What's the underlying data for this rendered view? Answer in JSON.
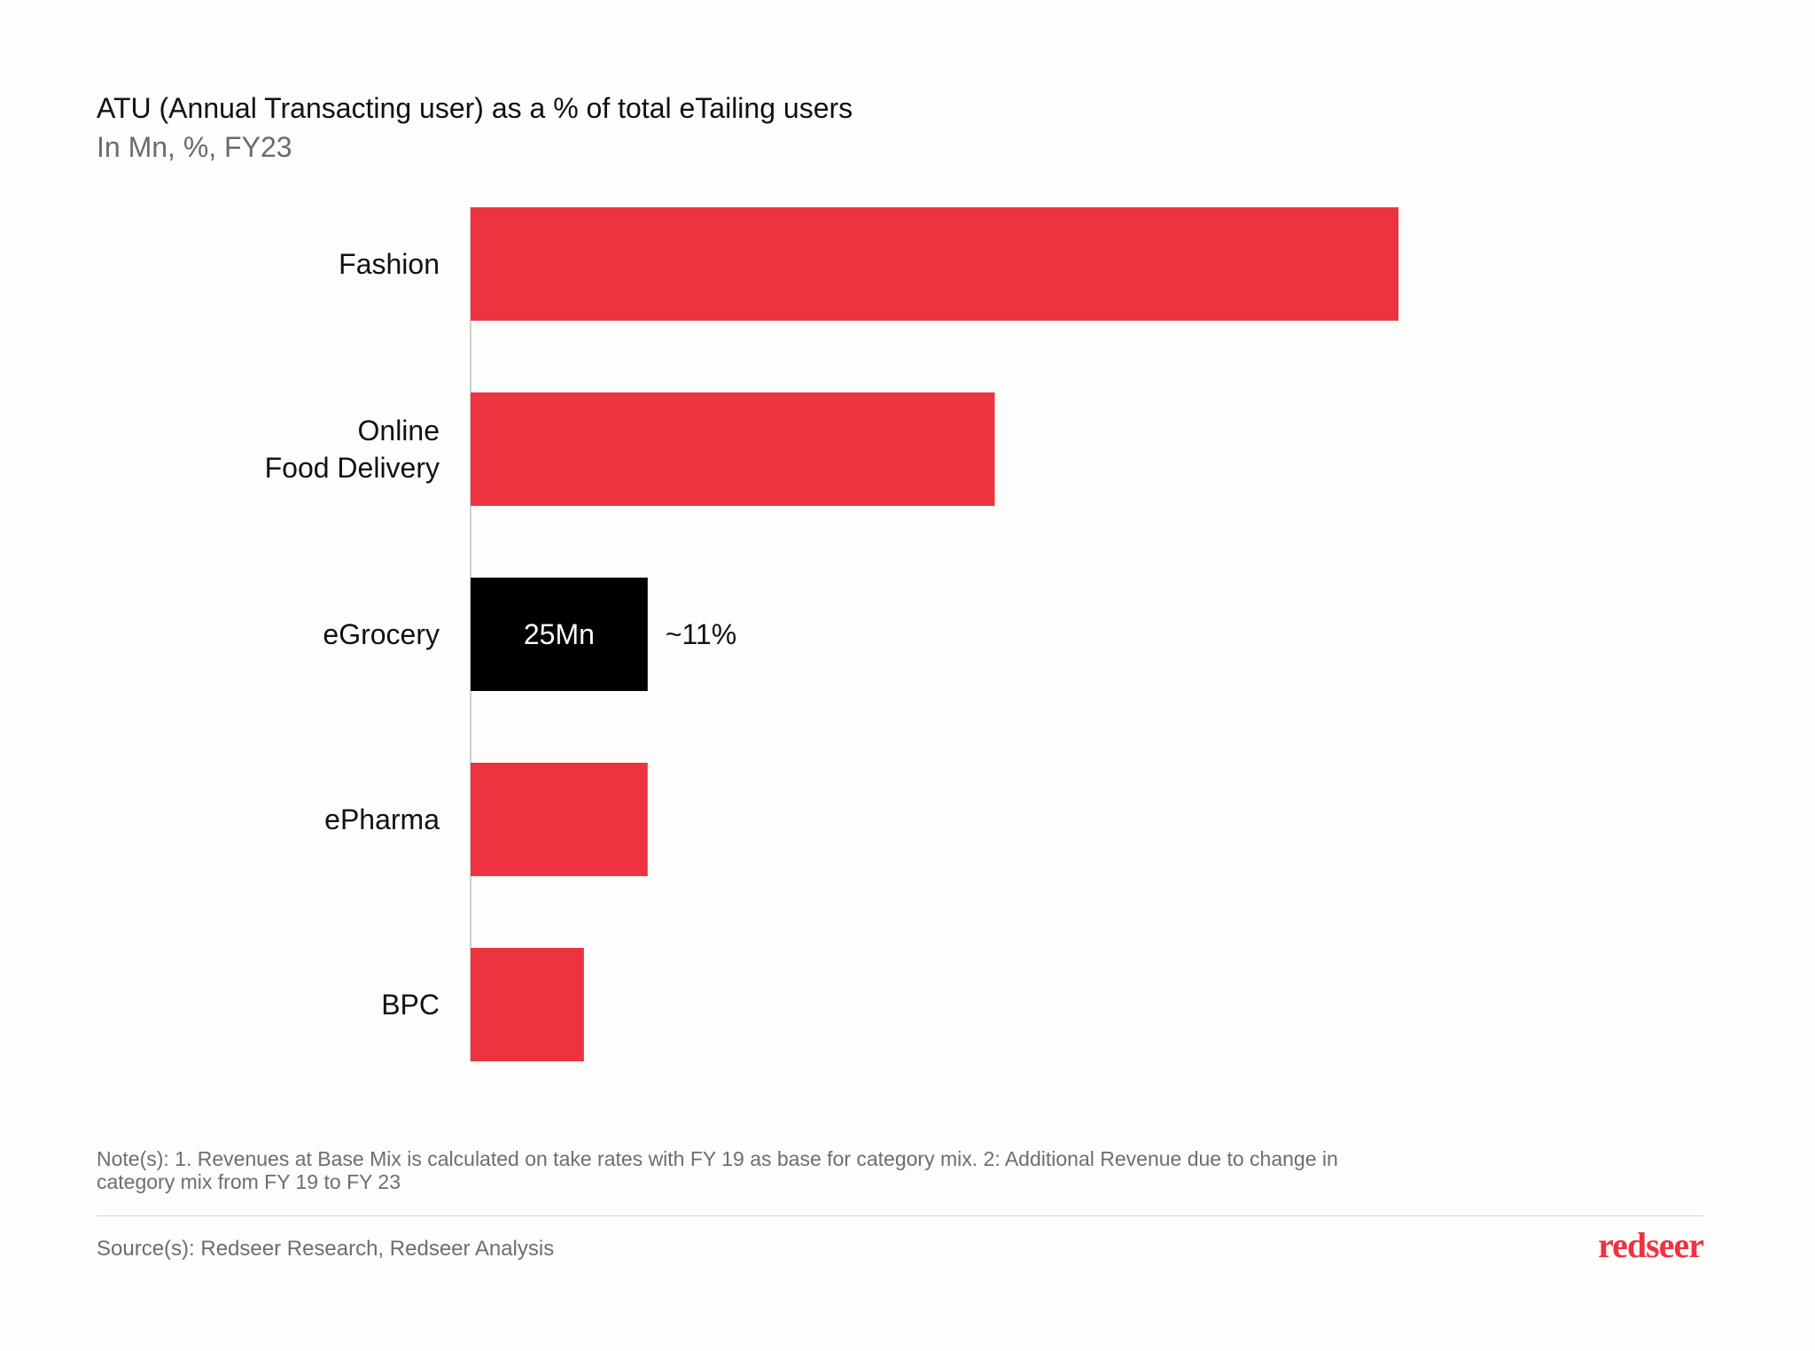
{
  "chart_data": {
    "type": "bar",
    "orientation": "horizontal",
    "title": "ATU (Annual Transacting user) as a % of total eTailing users",
    "subtitle": "In Mn, %, FY23",
    "categories": [
      [
        "Fashion"
      ],
      [
        "Online",
        "Food Delivery"
      ],
      [
        "eGrocery"
      ],
      [
        "ePharma"
      ],
      [
        "BPC"
      ]
    ],
    "values": [
      131,
      74,
      25,
      25,
      16
    ],
    "value_unit": "Mn",
    "data_labels": [
      "",
      "",
      "25Mn",
      "",
      ""
    ],
    "annotations": [
      "",
      "",
      "~11%",
      "",
      ""
    ],
    "highlight_index": 2,
    "colors": {
      "bar": "#ee3340",
      "highlight": "#000000",
      "axis": "#cfcfcf"
    },
    "xlim": [
      0,
      131
    ],
    "grid": false,
    "legend": "none"
  },
  "footer": {
    "note": "Note(s): 1. Revenues at Base Mix is calculated on take rates with FY 19 as base for category mix. 2: Additional Revenue due to change in category mix from FY 19 to FY 23",
    "source": "Source(s): Redseer Research, Redseer Analysis",
    "brand": "redseer"
  }
}
